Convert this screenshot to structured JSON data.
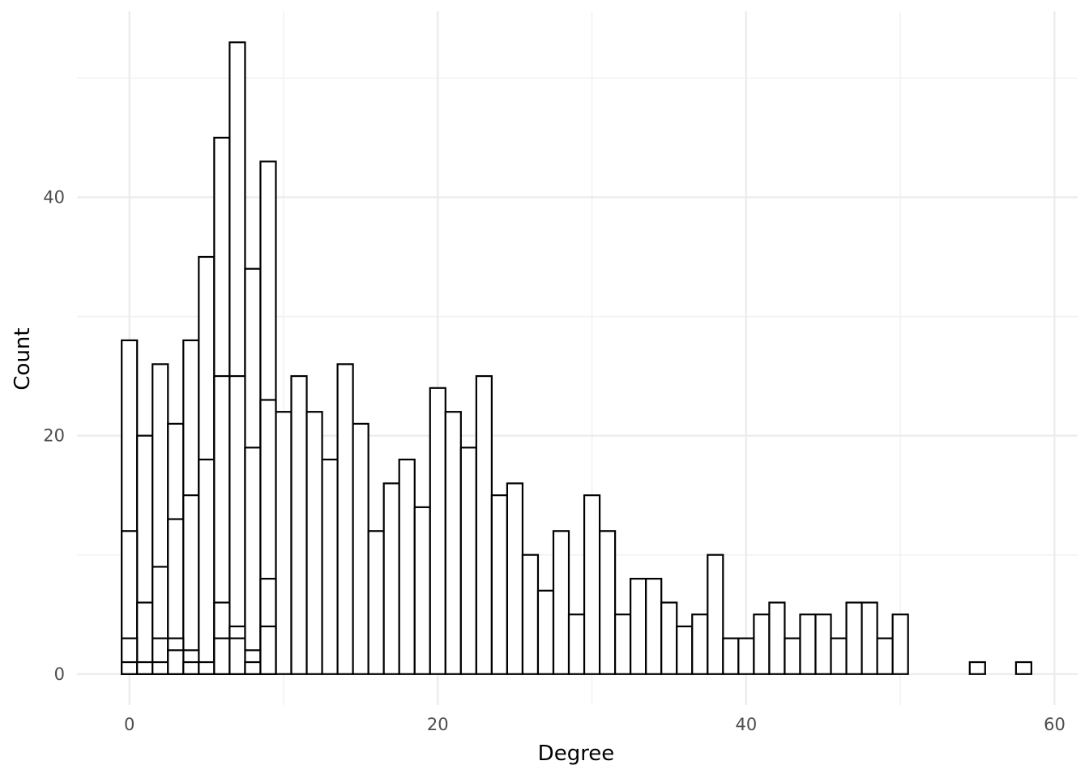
{
  "chart_data": {
    "type": "bar",
    "subtype": "histogram, overlapping (identity) groups",
    "xlabel": "Degree",
    "ylabel": "Count",
    "xlim": [
      -3.4,
      61.5
    ],
    "ylim": [
      -2.6,
      55.6
    ],
    "x_ticks": [
      0,
      20,
      40,
      60
    ],
    "y_ticks": [
      0,
      20,
      40
    ],
    "grid": true,
    "legend": "none",
    "bar_fill": "#ffffff",
    "bar_stroke": "#000000",
    "bin_width": 1,
    "series": [
      {
        "x": [
          0,
          1,
          2,
          3,
          4,
          5,
          6,
          7,
          8,
          9,
          10,
          11,
          12,
          13,
          14,
          15,
          16,
          17,
          18,
          19,
          20,
          21,
          22,
          23,
          24,
          25,
          26,
          27,
          28,
          29,
          30,
          31,
          32,
          33,
          34,
          35,
          36,
          37,
          38,
          39,
          40,
          41,
          42,
          43,
          44,
          45,
          46,
          47,
          48,
          49,
          50,
          55,
          58
        ],
        "values": [
          28,
          20,
          26,
          21,
          28,
          35,
          45,
          53,
          34,
          43,
          22,
          25,
          22,
          18,
          26,
          21,
          12,
          16,
          18,
          14,
          24,
          22,
          19,
          25,
          15,
          16,
          10,
          7,
          12,
          5,
          15,
          12,
          5,
          8,
          8,
          6,
          4,
          5,
          10,
          3,
          3,
          5,
          6,
          3,
          5,
          5,
          3,
          6,
          6,
          3,
          5,
          1,
          1
        ]
      },
      {
        "x": [
          0,
          1,
          2,
          3,
          4,
          5,
          6,
          7,
          8,
          9
        ],
        "values": [
          12,
          6,
          9,
          13,
          15,
          18,
          25,
          25,
          19,
          23
        ]
      },
      {
        "x": [
          0,
          2,
          3,
          4,
          6,
          7,
          8,
          9
        ],
        "values": [
          3,
          3,
          3,
          2,
          6,
          4,
          2,
          8
        ]
      },
      {
        "x": [
          0,
          1,
          2,
          3,
          4,
          5,
          6,
          7,
          8,
          9
        ],
        "values": [
          1,
          1,
          1,
          2,
          1,
          1,
          3,
          3,
          1,
          4
        ]
      }
    ]
  }
}
